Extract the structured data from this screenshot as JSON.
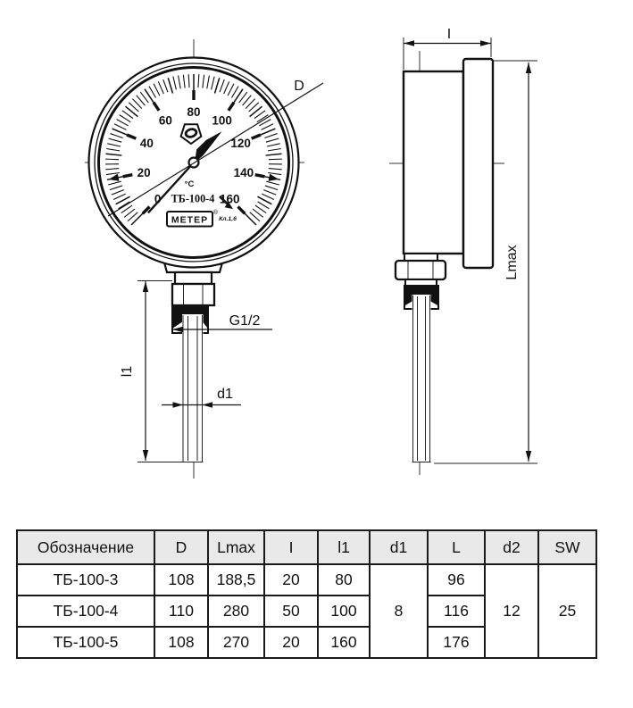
{
  "page": {
    "background": "#ffffff",
    "ink": "#111111",
    "table_header_bg": "#e9e9e9"
  },
  "front_view": {
    "dial": {
      "unit": "°C",
      "model": "ТБ-100-4",
      "brand": "МЕТЕР",
      "reg_mark": "®",
      "accuracy_class": "Кл.1,6",
      "scale": {
        "min": 0,
        "max": 160,
        "minor_step": 2,
        "mid_step": 10,
        "major_step": 20,
        "start_angle": 225,
        "sweep": -270
      },
      "scale_labels": [
        "0",
        "20",
        "40",
        "60",
        "80",
        "100",
        "120",
        "140",
        "160"
      ],
      "needle_value": 105,
      "range_mark_values": [
        20,
        140
      ]
    },
    "labels": {
      "diameter": "D",
      "thread": "G1/2",
      "stem_diameter": "d1",
      "stem_length": "l1"
    }
  },
  "side_view": {
    "labels": {
      "case_depth": "I",
      "total_length": "Lmax"
    }
  },
  "table": {
    "headers": [
      "Обозначение",
      "D",
      "Lmax",
      "I",
      "l1",
      "d1",
      "L",
      "d2",
      "SW"
    ],
    "rows": [
      {
        "model": "ТБ-100-3",
        "d": "108",
        "lmax": "188,5",
        "i": "20",
        "l1": "80",
        "l": "96"
      },
      {
        "model": "ТБ-100-4",
        "d": "110",
        "lmax": "280",
        "i": "50",
        "l1": "100",
        "l": "116"
      },
      {
        "model": "ТБ-100-5",
        "d": "108",
        "lmax": "270",
        "i": "20",
        "l1": "160",
        "l": "176"
      }
    ],
    "merged": {
      "d1": "8",
      "d2": "12",
      "sw": "25"
    }
  }
}
